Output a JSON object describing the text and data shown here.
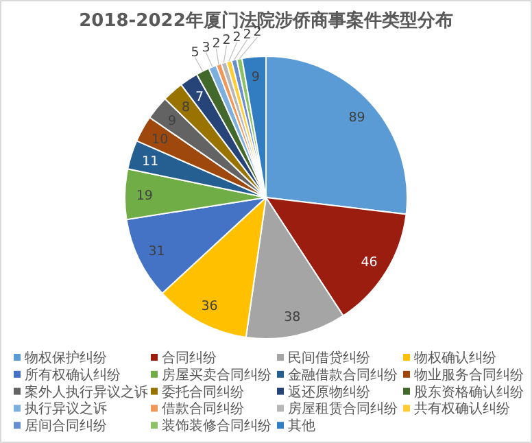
{
  "chart_data": {
    "type": "pie",
    "title": "2018-2022年厦门法院涉侨商事案件类型分布",
    "categories": [
      "物权保护纠纷",
      "合同纠纷",
      "民间借贷纠纷",
      "物权确认纠纷",
      "所有权确认纠纷",
      "房屋买卖合同纠纷",
      "金融借款合同纠纷",
      "物业服务合同纠纷",
      "案外人执行异议之诉",
      "委托合同纠纷",
      "返还原物纠纷",
      "股东资格确认纠纷",
      "执行异议之诉",
      "借款合同纠纷",
      "房屋租赁合同纠纷",
      "共有权确认纠纷",
      "居间合同纠纷",
      "装饰装修合同纠纷",
      "其他"
    ],
    "values": [
      89,
      46,
      38,
      36,
      31,
      19,
      11,
      10,
      9,
      8,
      7,
      5,
      3,
      2,
      2,
      2,
      2,
      2,
      9
    ],
    "colors": [
      "#5b9bd5",
      "#9b1d10",
      "#a5a5a5",
      "#ffc000",
      "#4472c4",
      "#70ad47",
      "#255e91",
      "#9e480e",
      "#636363",
      "#997300",
      "#264478",
      "#43682b",
      "#7cafdd",
      "#f1975a",
      "#b7b7b7",
      "#ffcd33",
      "#698ed0",
      "#8cc168",
      "#327dc2"
    ],
    "data_labels": true,
    "legend": "bottom"
  }
}
